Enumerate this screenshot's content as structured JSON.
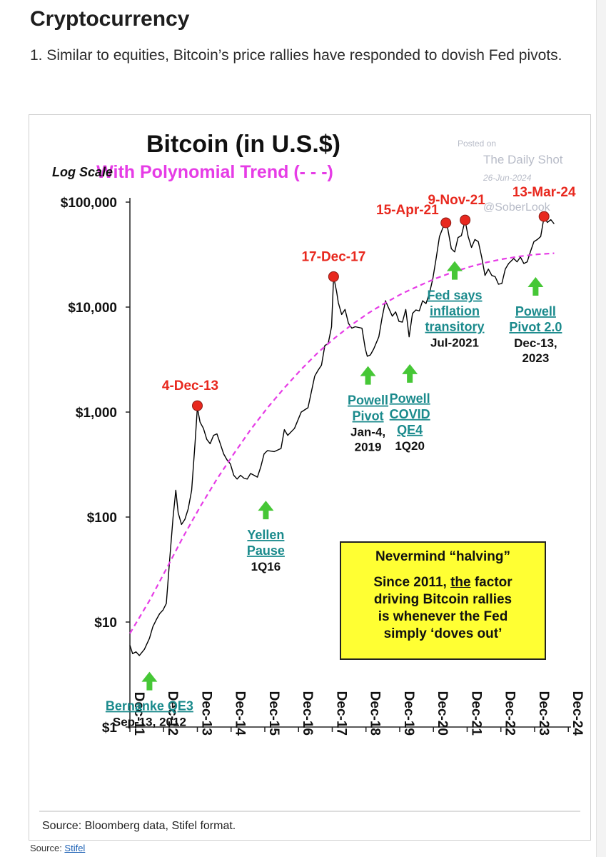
{
  "article": {
    "heading": "Cryptocurrency",
    "intro": "1. Similar to equities, Bitcoin’s price rallies have responded to dovish Fed pivots."
  },
  "chart_data": {
    "type": "line",
    "title": "Bitcoin (in U.S.$)",
    "subtitle": "With Polynomial Trend (- - -)",
    "ylabel": "Log Scale",
    "y_scale": "log",
    "ylim": [
      1,
      100000
    ],
    "y_ticks": [
      1,
      10,
      100,
      1000,
      10000,
      100000
    ],
    "y_tick_labels": [
      "$1",
      "$10",
      "$100",
      "$1,000",
      "$10,000",
      "$100,000"
    ],
    "x_range": [
      2011.92,
      2025.0
    ],
    "x_ticks": [
      2011.92,
      2012.92,
      2013.92,
      2014.92,
      2015.92,
      2016.92,
      2017.92,
      2018.92,
      2019.92,
      2020.92,
      2021.92,
      2022.92,
      2023.92,
      2024.92
    ],
    "x_tick_labels": [
      "Dec-11",
      "Dec-12",
      "Dec-13",
      "Dec-14",
      "Dec-15",
      "Dec-16",
      "Dec-17",
      "Dec-18",
      "Dec-19",
      "Dec-20",
      "Dec-21",
      "Dec-22",
      "Dec-23",
      "Dec-24"
    ],
    "series": [
      {
        "name": "Bitcoin",
        "color": "#000000",
        "x": [
          2011.92,
          2012.0,
          2012.1,
          2012.2,
          2012.35,
          2012.5,
          2012.6,
          2012.7,
          2012.8,
          2012.9,
          2013.0,
          2013.1,
          2013.2,
          2013.28,
          2013.35,
          2013.45,
          2013.55,
          2013.65,
          2013.75,
          2013.85,
          2013.92,
          2014.0,
          2014.1,
          2014.2,
          2014.3,
          2014.4,
          2014.5,
          2014.6,
          2014.7,
          2014.8,
          2014.9,
          2015.0,
          2015.1,
          2015.2,
          2015.3,
          2015.4,
          2015.5,
          2015.6,
          2015.7,
          2015.8,
          2015.9,
          2016.0,
          2016.2,
          2016.4,
          2016.5,
          2016.6,
          2016.8,
          2017.0,
          2017.2,
          2017.4,
          2017.5,
          2017.6,
          2017.7,
          2017.8,
          2017.9,
          2017.96,
          2018.05,
          2018.1,
          2018.2,
          2018.3,
          2018.4,
          2018.5,
          2018.6,
          2018.7,
          2018.8,
          2018.9,
          2018.96,
          2019.05,
          2019.15,
          2019.3,
          2019.4,
          2019.5,
          2019.55,
          2019.7,
          2019.8,
          2019.9,
          2020.0,
          2020.1,
          2020.2,
          2020.3,
          2020.4,
          2020.5,
          2020.6,
          2020.7,
          2020.8,
          2020.9,
          2021.0,
          2021.1,
          2021.2,
          2021.29,
          2021.35,
          2021.45,
          2021.55,
          2021.65,
          2021.75,
          2021.86,
          2021.95,
          2022.05,
          2022.15,
          2022.25,
          2022.35,
          2022.45,
          2022.55,
          2022.65,
          2022.75,
          2022.85,
          2022.95,
          2023.05,
          2023.15,
          2023.3,
          2023.4,
          2023.5,
          2023.6,
          2023.7,
          2023.8,
          2023.9,
          2024.0,
          2024.1,
          2024.2,
          2024.3,
          2024.4,
          2024.5
        ],
        "y": [
          6,
          5,
          5.2,
          4.8,
          5.5,
          7,
          9,
          10.5,
          12,
          13,
          15,
          40,
          100,
          180,
          110,
          85,
          95,
          120,
          180,
          500,
          1100,
          800,
          700,
          550,
          500,
          600,
          620,
          500,
          400,
          350,
          320,
          250,
          230,
          250,
          235,
          230,
          260,
          250,
          240,
          300,
          400,
          430,
          420,
          450,
          680,
          600,
          700,
          1000,
          1100,
          2200,
          2500,
          2800,
          4300,
          4500,
          6500,
          19500,
          14000,
          11000,
          8500,
          9500,
          7000,
          6300,
          6500,
          6400,
          6300,
          4000,
          3400,
          3500,
          4000,
          5200,
          8000,
          11500,
          10500,
          8200,
          9000,
          7300,
          7200,
          9500,
          5200,
          8700,
          9400,
          9200,
          11500,
          10800,
          13500,
          18500,
          29000,
          47000,
          57000,
          63500,
          55000,
          36000,
          33500,
          46000,
          48000,
          67000,
          47000,
          37000,
          44000,
          42000,
          30000,
          20000,
          23000,
          20000,
          19500,
          16500,
          16800,
          23000,
          26000,
          29000,
          27000,
          30000,
          26000,
          27000,
          34000,
          42000,
          44000,
          47000,
          72000,
          64000,
          68000,
          62000
        ]
      },
      {
        "name": "Polynomial Trend",
        "color": "#e63ce6",
        "x": [
          2011.92,
          2012.5,
          2013.0,
          2013.5,
          2014.0,
          2014.5,
          2015.0,
          2015.5,
          2016.0,
          2016.5,
          2017.0,
          2017.5,
          2018.0,
          2018.5,
          2019.0,
          2019.5,
          2020.0,
          2020.5,
          2021.0,
          2021.5,
          2022.0,
          2022.5,
          2023.0,
          2023.5,
          2024.0,
          2024.5
        ],
        "y": [
          7.8,
          16,
          32,
          65,
          125,
          230,
          400,
          680,
          1100,
          1700,
          2550,
          3700,
          5100,
          6800,
          8800,
          11000,
          13500,
          16000,
          18800,
          21500,
          24200,
          26700,
          28800,
          30500,
          31800,
          32600
        ]
      }
    ],
    "peaks": [
      {
        "label": "4-Dec-13",
        "x": 2013.92,
        "y": 1150
      },
      {
        "label": "17-Dec-17",
        "x": 2017.96,
        "y": 19500
      },
      {
        "label": "15-Apr-21",
        "x": 2021.29,
        "y": 63500
      },
      {
        "label": "9-Nov-21",
        "x": 2021.86,
        "y": 67500
      },
      {
        "label": "13-Mar-24",
        "x": 2024.2,
        "y": 73000
      }
    ],
    "pivots": [
      {
        "lines": [
          "Bernanke QE3"
        ],
        "underline": true,
        "date_lines": [
          "Sep-13, 2012"
        ],
        "x": 2012.5,
        "y": 2.7
      },
      {
        "lines": [
          "Yellen",
          "Pause"
        ],
        "underline": true,
        "date_lines": [
          "1Q16"
        ],
        "x": 2015.95,
        "y": 115
      },
      {
        "lines": [
          "Powell",
          "Pivot"
        ],
        "underline": true,
        "date_lines": [
          "Jan-4,",
          "2019"
        ],
        "x": 2018.98,
        "y": 2200
      },
      {
        "lines": [
          "Powell",
          "COVID",
          "QE4"
        ],
        "underline": true,
        "date_lines": [
          "1Q20"
        ],
        "x": 2020.22,
        "y": 2300
      },
      {
        "lines": [
          "Fed says",
          "inflation",
          "transitory"
        ],
        "underline": true,
        "date_lines": [
          "Jul-2021"
        ],
        "x": 2021.55,
        "y": 22000
      },
      {
        "lines": [
          "Powell",
          "Pivot 2.0"
        ],
        "underline": true,
        "date_lines": [
          "Dec-13,",
          "2023"
        ],
        "x": 2023.95,
        "y": 15500
      }
    ],
    "note": {
      "heading": "Nevermind “halving”",
      "line1_pre": "Since 2011, ",
      "line1_emph": "the",
      "line1_post": " factor",
      "line2": "driving Bitcoin rallies",
      "line3": "is whenever the Fed",
      "line4": "simply ‘doves out’"
    },
    "watermark": {
      "posted_on": "Posted on",
      "site": "The Daily Shot",
      "date": "26-Jun-2024",
      "handle": "@SoberLook"
    },
    "source_note": "Source: Bloomberg data, Stifel format.",
    "colors": {
      "peak": "#e8281e",
      "peak_text": "#e8281e",
      "arrow": "#46c736",
      "pivot_text": "#1a8a8c",
      "trend": "#e63ce6",
      "subtitle": "#e63ce6",
      "line": "#000000",
      "watermark": "#b8bcc8"
    }
  },
  "footer": {
    "source_prefix": "Source: ",
    "source_link": "Stifel"
  }
}
